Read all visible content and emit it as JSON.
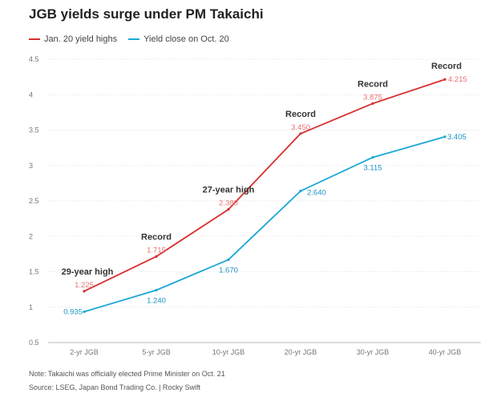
{
  "chart_data": {
    "type": "line",
    "title": "JGB yields surge under PM Takaichi",
    "categories": [
      "2-yr JGB",
      "5-yr JGB",
      "10-yr JGB",
      "20-yr JGB",
      "30-yr JGB",
      "40-yr JGB"
    ],
    "series": [
      {
        "name": "Jan. 20 yield highs",
        "color": "#d62f2f",
        "values": [
          1.225,
          1.715,
          2.38,
          3.45,
          3.875,
          4.215
        ],
        "labels": [
          "1.225",
          "1.715",
          "2.380",
          "3.450",
          "3.875",
          "4.215"
        ],
        "label_color": "#e8706f"
      },
      {
        "name": "Yield close on Oct. 20",
        "color": "#1aa7d6",
        "values": [
          0.935,
          1.24,
          1.67,
          2.64,
          3.115,
          3.405
        ],
        "labels": [
          "0.935",
          "1.240",
          "1.670",
          "2.640",
          "3.115",
          "3.405"
        ],
        "label_color": "#1a94c4"
      }
    ],
    "yticks": [
      "0.5",
      "1",
      "1.5",
      "2",
      "2.5",
      "3",
      "3.5",
      "4",
      "4.5"
    ],
    "ylim": [
      0.5,
      4.5
    ],
    "annotations": [
      "29-year high",
      "Record",
      "27-year high",
      "Record",
      "Record",
      "Record"
    ],
    "xlabel": "",
    "ylabel": "",
    "grid": true,
    "legend": "top-left"
  },
  "footer": {
    "note": "Note: Takaichi was officially elected Prime Minister on Oct. 21",
    "source": "Source: LSEG, Japan Bond Trading Co. | Rocky Swift"
  }
}
